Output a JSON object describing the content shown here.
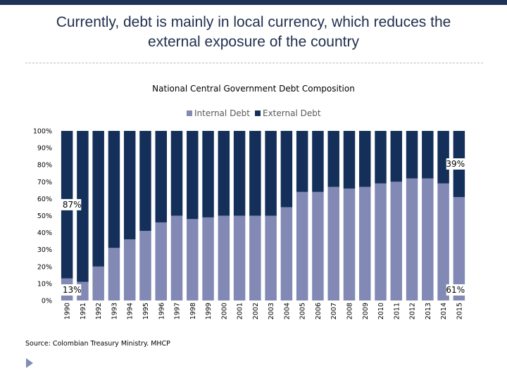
{
  "slide": {
    "title_line1": "Currently, debt is mainly in local currency, which reduces the",
    "title_line2": "external exposure of the country",
    "source": "Source: Colombian Treasury Ministry. MHCP"
  },
  "colors": {
    "internal": "#8189b4",
    "external": "#14305a",
    "top_rule": "#1f3258",
    "nav_arrow": "#7f8fb3"
  },
  "chart_data": {
    "type": "bar",
    "stacked": true,
    "title": "National Central Government Debt Composition",
    "categories": [
      "1990",
      "1991",
      "1992",
      "1993",
      "1994",
      "1995",
      "1996",
      "1997",
      "1998",
      "1999",
      "2000",
      "2001",
      "2002",
      "2003",
      "2004",
      "2005",
      "2006",
      "2007",
      "2008",
      "2009",
      "2010",
      "2011",
      "2012",
      "2013",
      "2014",
      "2015"
    ],
    "series": [
      {
        "name": "Internal Debt",
        "values": [
          13,
          11,
          20,
          31,
          36,
          41,
          46,
          50,
          48,
          49,
          50,
          50,
          50,
          50,
          55,
          64,
          64,
          67,
          66,
          67,
          69,
          70,
          72,
          72,
          69,
          61
        ]
      },
      {
        "name": "External Debt",
        "values": [
          87,
          89,
          80,
          69,
          64,
          59,
          54,
          50,
          52,
          51,
          50,
          50,
          50,
          50,
          45,
          36,
          36,
          33,
          34,
          33,
          31,
          30,
          28,
          28,
          31,
          39
        ]
      }
    ],
    "ylim": [
      0,
      100
    ],
    "yticks": [
      "0%",
      "10%",
      "20%",
      "30%",
      "40%",
      "50%",
      "60%",
      "70%",
      "80%",
      "90%",
      "100%"
    ],
    "legend_position": "top",
    "annotations": [
      {
        "text": "87%",
        "category": "1990",
        "series": "External Debt"
      },
      {
        "text": "13%",
        "category": "1990",
        "series": "Internal Debt"
      },
      {
        "text": "39%",
        "category": "2015",
        "series": "External Debt"
      },
      {
        "text": "61%",
        "category": "2015",
        "series": "Internal Debt"
      }
    ]
  }
}
